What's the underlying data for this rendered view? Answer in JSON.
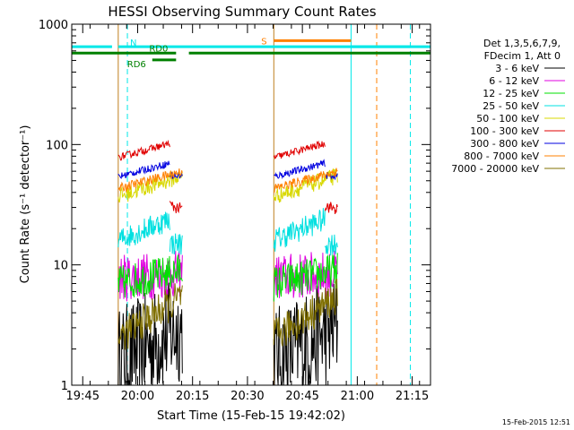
{
  "chart_data": {
    "type": "line",
    "title": "HESSI Observing Summary Count Rates",
    "xlabel": "Start Time (15-Feb-15 19:42:02)",
    "ylabel": "Count Rate (s⁻¹ detector⁻¹)",
    "ylog": true,
    "ylim": [
      1,
      1000
    ],
    "xlim_minutes_after_19_42_02": [
      0,
      98
    ],
    "xticks": [
      {
        "label": "19:45",
        "t": 3
      },
      {
        "label": "20:00",
        "t": 18
      },
      {
        "label": "20:15",
        "t": 33
      },
      {
        "label": "20:30",
        "t": 48
      },
      {
        "label": "20:45",
        "t": 63
      },
      {
        "label": "21:00",
        "t": 78
      },
      {
        "label": "21:15",
        "t": 93
      }
    ],
    "yticks": [
      {
        "label": "1",
        "v": 1
      },
      {
        "label": "10",
        "v": 10
      },
      {
        "label": "100",
        "v": 100
      },
      {
        "label": "1000",
        "v": 1000
      }
    ],
    "legend_title": [
      "Det 1,3,5,6,7,9,",
      "FDecim 1, Att 0"
    ],
    "legend_position": "right",
    "series": [
      {
        "name": "3 - 6 keV",
        "color": "#000000",
        "segments": [
          {
            "t0": 12.7,
            "t1": 30.2,
            "v0": 1.6,
            "v1": 3.0,
            "jit": 0.45,
            "j": 0.45
          },
          {
            "t0": 55.2,
            "t1": 72.6,
            "v0": 1.6,
            "v1": 3.0,
            "jit": 0.45,
            "j": 0.45
          }
        ]
      },
      {
        "name": "6 - 12 keV",
        "color": "#e000e0",
        "segments": [
          {
            "t0": 12.7,
            "t1": 30.2,
            "v0": 7.8,
            "v1": 8.4,
            "jit": 0.2,
            "j": 0.5
          },
          {
            "t0": 55.2,
            "t1": 72.6,
            "v0": 7.8,
            "v1": 8.4,
            "jit": 0.2,
            "j": 0.5
          }
        ]
      },
      {
        "name": "12 - 25 keV",
        "color": "#00e000",
        "segments": [
          {
            "t0": 12.7,
            "t1": 30.2,
            "v0": 7.0,
            "v1": 9.0,
            "jit": 0.15,
            "j": 0.6
          },
          {
            "t0": 55.2,
            "t1": 72.6,
            "v0": 7.0,
            "v1": 9.0,
            "jit": 0.15,
            "j": 0.6
          }
        ]
      },
      {
        "name": "25 - 50 keV",
        "color": "#00e0e0",
        "segments": [
          {
            "t0": 12.7,
            "t1": 26.8,
            "v0": 16.0,
            "v1": 24.0,
            "jit": 0.1,
            "j": 0.7
          },
          {
            "t0": 26.8,
            "t1": 30.2,
            "v0": 15.0,
            "v1": 15.0,
            "jit": 0.1,
            "j": 0.7
          },
          {
            "t0": 55.2,
            "t1": 69.2,
            "v0": 16.0,
            "v1": 24.0,
            "jit": 0.1,
            "j": 0.7
          },
          {
            "t0": 69.2,
            "t1": 72.6,
            "v0": 15.0,
            "v1": 15.0,
            "jit": 0.1,
            "j": 0.7
          }
        ]
      },
      {
        "name": "50 - 100 keV",
        "color": "#d8d800",
        "segments": [
          {
            "t0": 12.7,
            "t1": 30.2,
            "v0": 37.0,
            "v1": 55.0,
            "jit": 0.07,
            "j": 0.8
          },
          {
            "t0": 55.2,
            "t1": 72.6,
            "v0": 37.0,
            "v1": 55.0,
            "jit": 0.07,
            "j": 0.8
          }
        ]
      },
      {
        "name": "100 - 300 keV",
        "color": "#e00000",
        "segments": [
          {
            "t0": 12.7,
            "t1": 26.8,
            "v0": 78.0,
            "v1": 102.0,
            "jit": 0.03,
            "j": 0.9
          },
          {
            "t0": 26.8,
            "t1": 30.2,
            "v0": 31.0,
            "v1": 29.0,
            "jit": 0.05,
            "j": 0.9
          },
          {
            "t0": 55.2,
            "t1": 69.2,
            "v0": 78.0,
            "v1": 102.0,
            "jit": 0.03,
            "j": 0.9
          },
          {
            "t0": 69.2,
            "t1": 72.6,
            "v0": 31.0,
            "v1": 29.0,
            "jit": 0.05,
            "j": 0.9
          }
        ]
      },
      {
        "name": "300 - 800 keV",
        "color": "#0000e0",
        "segments": [
          {
            "t0": 12.7,
            "t1": 26.8,
            "v0": 54.0,
            "v1": 70.0,
            "jit": 0.03,
            "j": 1.0
          },
          {
            "t0": 26.8,
            "t1": 30.2,
            "v0": 55.0,
            "v1": 55.0,
            "jit": 0.03,
            "j": 1.0
          },
          {
            "t0": 55.2,
            "t1": 69.2,
            "v0": 54.0,
            "v1": 70.0,
            "jit": 0.03,
            "j": 1.0
          },
          {
            "t0": 69.2,
            "t1": 72.6,
            "v0": 55.0,
            "v1": 55.0,
            "jit": 0.03,
            "j": 1.0
          }
        ]
      },
      {
        "name": "800 - 7000 keV",
        "color": "#ff8000",
        "segments": [
          {
            "t0": 12.7,
            "t1": 30.2,
            "v0": 43.0,
            "v1": 60.0,
            "jit": 0.04,
            "j": 1.1
          },
          {
            "t0": 55.2,
            "t1": 72.6,
            "v0": 43.0,
            "v1": 60.0,
            "jit": 0.04,
            "j": 1.1
          }
        ]
      },
      {
        "name": "7000 - 20000 keV",
        "color": "#807000",
        "segments": [
          {
            "t0": 12.7,
            "t1": 30.2,
            "v0": 2.5,
            "v1": 5.5,
            "jit": 0.15,
            "j": 1.2
          },
          {
            "t0": 55.2,
            "t1": 72.6,
            "v0": 2.5,
            "v1": 5.5,
            "jit": 0.15,
            "j": 1.2
          }
        ]
      }
    ],
    "flag_bars": [
      {
        "label": "N",
        "color": "#00e8e8",
        "y_value": 650,
        "spans": [
          [
            0,
            11
          ],
          [
            12.7,
            98
          ]
        ],
        "hidden_spans_after_marker": true
      },
      {
        "label": "S",
        "color": "#ff8000",
        "y_value": 730,
        "spans": [
          [
            55.2,
            76.3
          ]
        ]
      },
      {
        "label": "",
        "color": "#00e8e8",
        "y_value": 650,
        "spans": [
          [
            76.3,
            92.5
          ]
        ]
      },
      {
        "label": "RD0",
        "color": "#008000",
        "y_value": 575,
        "spans": [
          [
            0,
            28.5
          ],
          [
            32,
            98
          ]
        ]
      },
      {
        "label": "RD6",
        "color": "#008000",
        "y_value": 505,
        "spans": [
          [
            22,
            28.5
          ]
        ]
      }
    ],
    "vertical_lines": [
      {
        "t": 0,
        "color": "#00e8e8",
        "style": "solid"
      },
      {
        "t": 12.7,
        "color": "#c08020",
        "style": "solid"
      },
      {
        "t": 15.2,
        "color": "#00e8e8",
        "style": "dashed"
      },
      {
        "t": 55.2,
        "color": "#c08020",
        "style": "solid"
      },
      {
        "t": 76.3,
        "color": "#00e8e8",
        "style": "solid"
      },
      {
        "t": 83.3,
        "color": "#ff8000",
        "style": "dashed"
      },
      {
        "t": 92.5,
        "color": "#00e8e8",
        "style": "dashed"
      }
    ],
    "footer_date": "15-Feb-2015 12:51"
  }
}
